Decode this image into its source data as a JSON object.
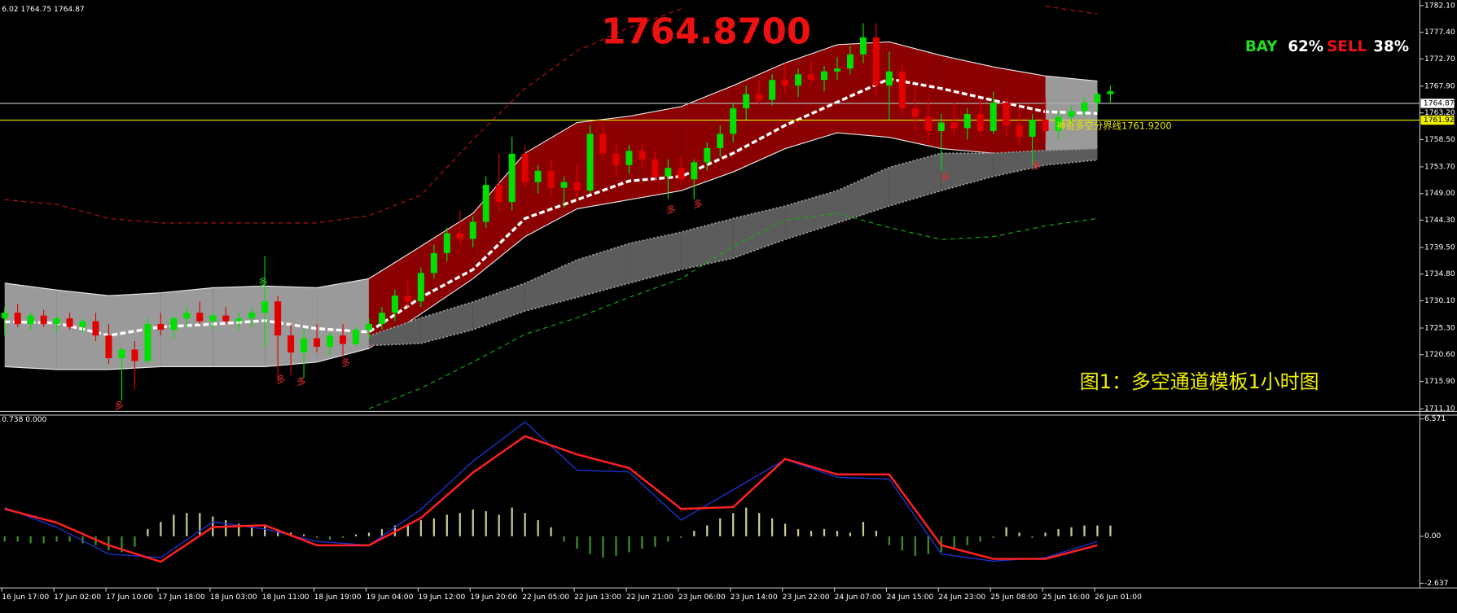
{
  "chart_data": {
    "type": "candlestick",
    "header": "6.02 1764.75 1764.87",
    "price_title": "1764.8700",
    "sentiment": {
      "names": [
        "BAY",
        "SELL"
      ],
      "colors": [
        "#22dd22",
        "#ee1111"
      ],
      "values": [
        62,
        38
      ],
      "value_labels": [
        "62%",
        "38%"
      ]
    },
    "caption": "图1：多空通道模板1小时图",
    "divider_note": "神奇多空分界线1761.9200",
    "signal_label": "多",
    "categories": [
      "16 Jun 17:00",
      null,
      null,
      null,
      "17 Jun 02:00",
      null,
      null,
      null,
      "17 Jun 10:00",
      null,
      null,
      null,
      "17 Jun 18:00",
      null,
      null,
      null,
      "18 Jun 03:00",
      null,
      null,
      null,
      "18 Jun 11:00",
      null,
      null,
      null,
      "18 Jun 19:00",
      null,
      null,
      null,
      "19 Jun 04:00",
      null,
      null,
      null,
      "19 Jun 12:00",
      null,
      null,
      null,
      "19 Jun 20:00",
      null,
      null,
      null,
      "22 Jun 05:00",
      null,
      null,
      null,
      "22 Jun 13:00",
      null,
      null,
      null,
      "22 Jun 21:00",
      null,
      null,
      null,
      "23 Jun 06:00",
      null,
      null,
      null,
      "23 Jun 14:00",
      null,
      null,
      null,
      "23 Jun 22:00",
      null,
      null,
      null,
      "24 Jun 07:00",
      null,
      null,
      null,
      "24 Jun 15:00",
      null,
      null,
      null,
      "24 Jun 23:00",
      null,
      null,
      null,
      "25 Jun 08:00",
      null,
      null,
      null,
      "25 Jun 16:00",
      null,
      null,
      null,
      "26 Jun 01:00",
      null
    ],
    "ohlc": [
      [
        1727,
        1729,
        1724,
        1728
      ],
      [
        1728,
        1729.5,
        1725.5,
        1726
      ],
      [
        1726,
        1728,
        1725,
        1727.5
      ],
      [
        1727.5,
        1728.5,
        1725.5,
        1726
      ],
      [
        1726,
        1727.5,
        1724.5,
        1727
      ],
      [
        1727,
        1728,
        1725,
        1725.5
      ],
      [
        1725.5,
        1727,
        1724.5,
        1726.5
      ],
      [
        1726.5,
        1728,
        1723,
        1724
      ],
      [
        1724,
        1726,
        1719,
        1720
      ],
      [
        1720,
        1722,
        1712.5,
        1721.5
      ],
      [
        1721.5,
        1723,
        1714.5,
        1719.5
      ],
      [
        1719.5,
        1727,
        1719,
        1726
      ],
      [
        1726,
        1728,
        1724,
        1725
      ],
      [
        1725,
        1727.5,
        1723.5,
        1727
      ],
      [
        1727,
        1729,
        1725.5,
        1728
      ],
      [
        1728,
        1730,
        1726,
        1726.5
      ],
      [
        1726.5,
        1728,
        1725,
        1727.5
      ],
      [
        1727.5,
        1729,
        1726,
        1726.5
      ],
      [
        1726.5,
        1728,
        1725,
        1727
      ],
      [
        1727,
        1729,
        1725.5,
        1728
      ],
      [
        1728,
        1738,
        1722,
        1730
      ],
      [
        1730,
        1731,
        1716,
        1724
      ],
      [
        1724,
        1726,
        1717,
        1721
      ],
      [
        1721,
        1725,
        1716.5,
        1723.5
      ],
      [
        1723.5,
        1726,
        1721,
        1722
      ],
      [
        1722,
        1724.5,
        1720.5,
        1724
      ],
      [
        1724,
        1726,
        1720,
        1722.5
      ],
      [
        1722.5,
        1725.5,
        1722,
        1725
      ],
      [
        1725,
        1727,
        1723.5,
        1726
      ],
      [
        1726,
        1729,
        1725,
        1728
      ],
      [
        1728,
        1732,
        1726.5,
        1731
      ],
      [
        1731,
        1734,
        1729,
        1730
      ],
      [
        1730,
        1736,
        1729,
        1735
      ],
      [
        1735,
        1740,
        1734,
        1738.5
      ],
      [
        1738.5,
        1743,
        1737,
        1742
      ],
      [
        1742,
        1746,
        1740,
        1741
      ],
      [
        1741,
        1745,
        1739.5,
        1744
      ],
      [
        1744,
        1752,
        1743,
        1750.5
      ],
      [
        1750.5,
        1756,
        1746,
        1747.5
      ],
      [
        1747.5,
        1759,
        1746,
        1756
      ],
      [
        1756,
        1757.5,
        1750,
        1751
      ],
      [
        1751,
        1754,
        1749,
        1753
      ],
      [
        1753,
        1755,
        1748.5,
        1750
      ],
      [
        1750,
        1752,
        1746.5,
        1751
      ],
      [
        1751,
        1754,
        1748,
        1749.5
      ],
      [
        1749.5,
        1761,
        1749,
        1759.5
      ],
      [
        1759.5,
        1761.5,
        1755,
        1756
      ],
      [
        1756,
        1758,
        1752,
        1754
      ],
      [
        1754,
        1757.5,
        1752.5,
        1756.5
      ],
      [
        1756.5,
        1758,
        1753.5,
        1755
      ],
      [
        1755,
        1756.5,
        1751,
        1752
      ],
      [
        1752,
        1755,
        1748,
        1753.5
      ],
      [
        1753.5,
        1755.5,
        1750.5,
        1751.5
      ],
      [
        1751.5,
        1755,
        1748,
        1754.5
      ],
      [
        1754.5,
        1758,
        1753,
        1757
      ],
      [
        1757,
        1761,
        1755.5,
        1759.5
      ],
      [
        1759.5,
        1765,
        1758,
        1764
      ],
      [
        1764,
        1768,
        1762,
        1766.5
      ],
      [
        1766.5,
        1769,
        1764.5,
        1765.5
      ],
      [
        1765.5,
        1770,
        1764.5,
        1769
      ],
      [
        1769,
        1772,
        1766.5,
        1768
      ],
      [
        1768,
        1771,
        1766,
        1770
      ],
      [
        1770,
        1772.5,
        1768,
        1769
      ],
      [
        1769,
        1771.5,
        1767,
        1770.5
      ],
      [
        1770.5,
        1773,
        1769,
        1771
      ],
      [
        1771,
        1775,
        1770,
        1773.5
      ],
      [
        1773.5,
        1779,
        1772,
        1776.5
      ],
      [
        1776.5,
        1779,
        1766,
        1768
      ],
      [
        1768,
        1774,
        1762,
        1770.5
      ],
      [
        1770.5,
        1772,
        1763,
        1764
      ],
      [
        1764,
        1768,
        1760,
        1762.5
      ],
      [
        1762.5,
        1766,
        1758,
        1760
      ],
      [
        1760,
        1763,
        1753,
        1761.5
      ],
      [
        1761.5,
        1765,
        1759,
        1760.5
      ],
      [
        1760.5,
        1764,
        1758.5,
        1763
      ],
      [
        1763,
        1765.5,
        1759,
        1760
      ],
      [
        1760,
        1767,
        1759.5,
        1765
      ],
      [
        1765,
        1766,
        1759,
        1761
      ],
      [
        1761,
        1764,
        1757.5,
        1759
      ],
      [
        1759,
        1763,
        1754,
        1762
      ],
      [
        1762,
        1766,
        1758,
        1760
      ],
      [
        1760,
        1763.5,
        1758.5,
        1762.5
      ],
      [
        1762.5,
        1764.5,
        1761,
        1763.5
      ],
      [
        1763.5,
        1766,
        1762.5,
        1765
      ],
      [
        1765,
        1767,
        1763.5,
        1766.5
      ],
      [
        1766.5,
        1768,
        1765,
        1767
      ]
    ],
    "up_color": "#00e000",
    "down_color": "#e00000",
    "ylim": [
      1711.1,
      1782.1
    ],
    "yticks": [
      {
        "value": 1782.1,
        "label": "1782.10"
      },
      {
        "value": 1777.4,
        "label": "1777.40"
      },
      {
        "value": 1772.7,
        "label": "1772.70"
      },
      {
        "value": 1767.9,
        "label": "1767.90"
      },
      {
        "value": 1763.2,
        "label": "1763.20"
      },
      {
        "value": 1758.5,
        "label": "1758.50"
      },
      {
        "value": 1753.7,
        "label": "1753.70"
      },
      {
        "value": 1749,
        "label": "1749.00"
      },
      {
        "value": 1744.3,
        "label": "1744.30"
      },
      {
        "value": 1739.5,
        "label": "1739.50"
      },
      {
        "value": 1734.8,
        "label": "1734.80"
      },
      {
        "value": 1730.1,
        "label": "1730.10"
      },
      {
        "value": 1725.3,
        "label": "1725.30"
      },
      {
        "value": 1720.6,
        "label": "1720.60"
      },
      {
        "value": 1715.9,
        "label": "1715.90"
      },
      {
        "value": 1711.1,
        "label": "1711.10"
      }
    ],
    "price_lines": [
      {
        "value": 1764.87,
        "color": "#b0b0b0",
        "label_bg": "#ffffff"
      },
      {
        "value": 1761.92,
        "color": "#e8e800",
        "label_bg": "#f0f000"
      }
    ],
    "band": {
      "upper": [
        1733.2,
        1732.0,
        1731.0,
        1731.5,
        1732.4,
        1732.7,
        1732.4,
        1734.0,
        1739.7,
        1745.5,
        1756.1,
        1761.5,
        1762.6,
        1764.3,
        1768.0,
        1772.0,
        1775.2,
        1775.7,
        1773.3,
        1771.3,
        1769.7,
        1768.8
      ],
      "lower": [
        1718.5,
        1718.0,
        1718.0,
        1718.5,
        1718.5,
        1718.5,
        1719.3,
        1721.7,
        1727.8,
        1734.0,
        1741.4,
        1746.3,
        1747.9,
        1749.5,
        1752.8,
        1756.9,
        1759.7,
        1758.9,
        1756.9,
        1756.1,
        1755.6,
        1756.1
      ],
      "colors": [
        "#9a9a9a",
        "#9a9a9a",
        "#9a9a9a",
        "#9a9a9a",
        "#9a9a9a",
        "#9a9a9a",
        "#9a9a9a",
        "#8b0000",
        "#8b0000",
        "#8b0000",
        "#8b0000",
        "#8b0000",
        "#8b0000",
        "#8b0000",
        "#8b0000",
        "#8b0000",
        "#8b0000",
        "#8b0000",
        "#8b0000",
        "#8b0000",
        "#9a9a9a"
      ]
    },
    "ribbon": {
      "color": "#5c5c5c",
      "upper": [
        null,
        null,
        null,
        null,
        null,
        null,
        null,
        1723.9,
        1727.1,
        1729.9,
        1733.2,
        1737.3,
        1740.2,
        1742.2,
        1744.6,
        1746.8,
        1749.5,
        1753.6,
        1756.1,
        1756.1,
        1756.6,
        1756.9
      ],
      "lower": [
        null,
        null,
        null,
        null,
        null,
        null,
        null,
        1722.2,
        1722.6,
        1725.0,
        1728.3,
        1730.7,
        1733.2,
        1735.6,
        1737.6,
        1740.9,
        1743.8,
        1746.8,
        1749.5,
        1752.0,
        1754.0,
        1754.9
      ]
    },
    "lines": [
      {
        "color": "#c01010",
        "dash": true,
        "values": [
          1747.9,
          1747.1,
          1744.6,
          1743.8,
          1743.8,
          1743.8,
          1743.8,
          1745.1,
          1748.7,
          1758.5,
          1767.5,
          1774.1,
          1778.2,
          1781.5,
          null,
          null,
          null,
          null,
          null,
          null,
          1782.0,
          1780.6
        ]
      },
      {
        "color": "#10b010",
        "dash": true,
        "values": [
          null,
          null,
          null,
          null,
          null,
          null,
          null,
          1711.1,
          1714.7,
          1719.3,
          1724.2,
          1727.1,
          1730.7,
          1734.0,
          1739.7,
          1744.3,
          1745.5,
          1743.0,
          1740.9,
          1741.4,
          1743.3,
          1744.6
        ]
      },
      {
        "color": "#ffffff",
        "dash": false,
        "values": [
          1726.4,
          1726.2,
          1724.0,
          1725.5,
          1726.0,
          1726.6,
          1725.2,
          1724.6,
          1730.7,
          1735.6,
          1744.6,
          1747.9,
          1751.2,
          1752.0,
          1756.1,
          1761.0,
          1765.1,
          1769.2,
          1767.5,
          1765.4,
          1763.4,
          1763.1
        ]
      }
    ],
    "indicator": {
      "header": "0.738 0.000",
      "ylim": [
        -2.637,
        6.571
      ],
      "yticks": [
        6.571,
        {
          "value": 0,
          "label": "0.00"
        },
        -2.637
      ],
      "pos_color": "#c8c890",
      "neg_color": "#3f8a2a",
      "histogram": [
        -0.3,
        -0.3,
        -0.4,
        -0.4,
        -0.3,
        -0.3,
        -0.4,
        -0.5,
        -0.8,
        -0.9,
        -0.6,
        0.4,
        0.8,
        1.2,
        1.3,
        1.3,
        1.1,
        0.9,
        0.7,
        0.5,
        0.6,
        0.4,
        0.2,
        0.1,
        -0.1,
        -0.2,
        -0.1,
        0.1,
        0.2,
        0.4,
        0.6,
        0.7,
        0.9,
        1.0,
        1.2,
        1.3,
        1.5,
        1.4,
        1.2,
        1.6,
        1.3,
        0.9,
        0.5,
        -0.3,
        -0.7,
        -1.0,
        -1.2,
        -1.1,
        -0.9,
        -0.7,
        -0.6,
        -0.3,
        -0.1,
        0.3,
        0.6,
        1.0,
        1.3,
        1.6,
        1.3,
        1.0,
        0.7,
        0.4,
        0.3,
        0.4,
        0.3,
        0.2,
        0.8,
        0.3,
        -0.5,
        -0.8,
        -1.1,
        -1.0,
        -0.9,
        -0.7,
        -0.5,
        -0.3,
        -0.1,
        0.5,
        0.2,
        -0.1,
        0.2,
        0.4,
        0.5,
        0.6,
        0.6,
        0.6
      ],
      "series": [
        {
          "color": "#2030d0",
          "values": [
            1.6,
            0.5,
            -1.0,
            -1.2,
            0.8,
            0.4,
            -0.3,
            -0.5,
            1.5,
            4.2,
            6.4,
            3.7,
            3.6,
            0.9,
            2.6,
            4.3,
            3.3,
            3.2,
            -1.0,
            -1.4,
            -1.2,
            -0.3
          ]
        },
        {
          "color": "#ff2020",
          "values": [
            1.53,
            0.76,
            -0.51,
            -1.43,
            0.51,
            0.61,
            -0.51,
            -0.51,
            1.02,
            3.56,
            5.6,
            4.58,
            3.82,
            1.53,
            1.63,
            4.33,
            3.46,
            3.46,
            -0.51,
            -1.27,
            -1.27,
            -0.51
          ]
        }
      ]
    }
  }
}
